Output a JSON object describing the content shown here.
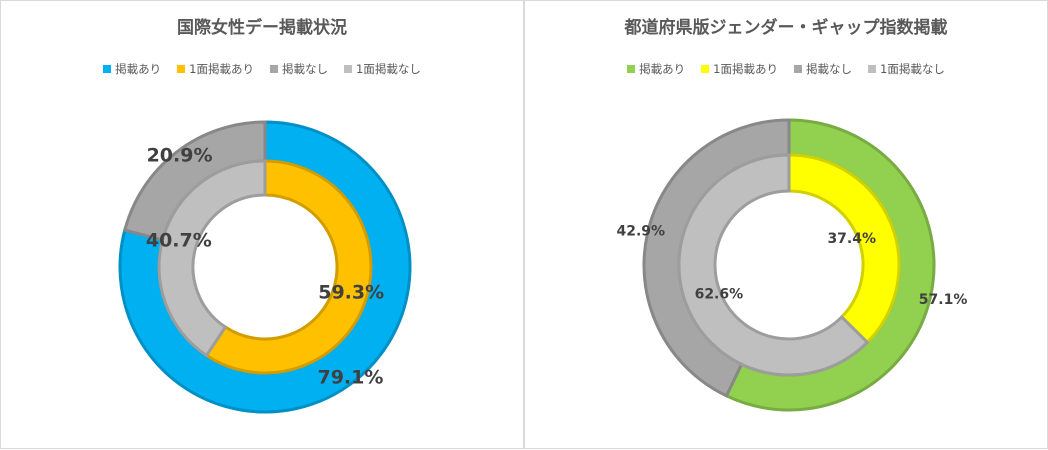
{
  "chart_data": [
    {
      "type": "doughnut",
      "title": "国際女性デー掲載状況",
      "legend": [
        "掲載あり",
        "1面掲載あり",
        "掲載なし",
        "1面掲載なし"
      ],
      "colors": {
        "掲載あり": "#00B0F0",
        "1面掲載あり": "#FFC000",
        "掲載なし": "#A6A6A6",
        "1面掲載なし": "#BFBFBF"
      },
      "outer": {
        "values": [
          79.1,
          20.9
        ],
        "labels": [
          "79.1%",
          "20.9%"
        ],
        "categories": [
          "掲載あり",
          "掲載なし"
        ]
      },
      "inner": {
        "values": [
          59.3,
          40.7
        ],
        "labels": [
          "59.3%",
          "40.7%"
        ],
        "categories": [
          "1面掲載あり",
          "1面掲載なし"
        ]
      }
    },
    {
      "type": "doughnut",
      "title": "都道府県版ジェンダー・ギャップ指数掲載",
      "legend": [
        "掲載あり",
        "1面掲載あり",
        "掲載なし",
        "1面掲載なし"
      ],
      "colors": {
        "掲載あり": "#92D050",
        "1面掲載あり": "#FFFF00",
        "掲載なし": "#A6A6A6",
        "1面掲載なし": "#BFBFBF"
      },
      "outer": {
        "values": [
          57.1,
          42.9
        ],
        "labels": [
          "57.1%",
          "42.9%"
        ],
        "categories": [
          "掲載あり",
          "掲載なし"
        ]
      },
      "inner": {
        "values": [
          37.4,
          62.6
        ],
        "labels": [
          "37.4%",
          "62.6%"
        ],
        "categories": [
          "1面掲載あり",
          "1面掲載なし"
        ]
      }
    }
  ]
}
